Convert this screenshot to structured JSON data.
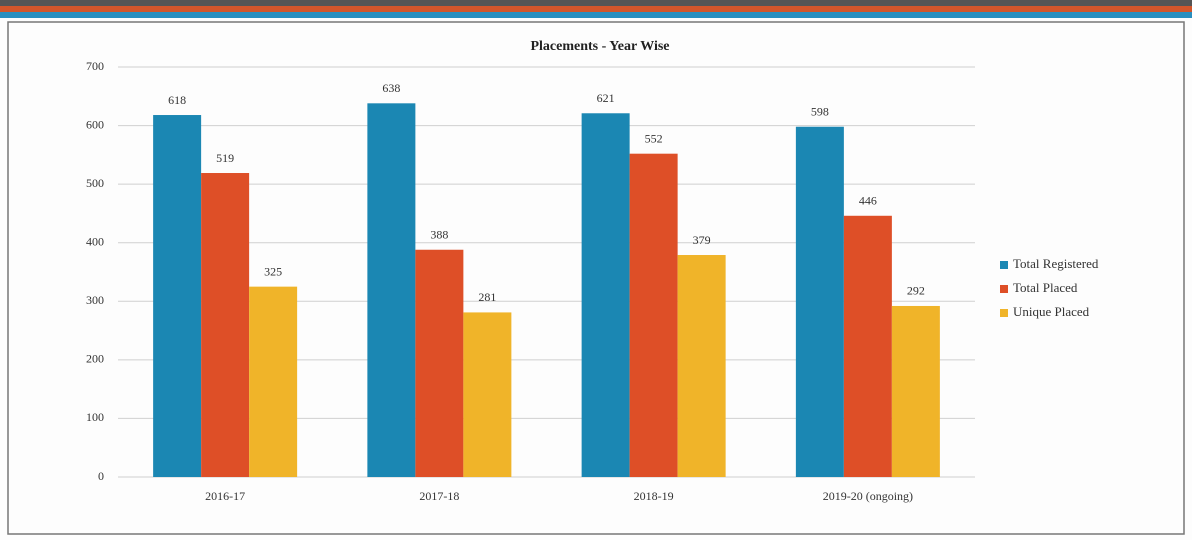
{
  "chart_data": {
    "type": "bar",
    "title": "Placements - Year Wise",
    "categories": [
      "2016-17",
      "2017-18",
      "2018-19",
      "2019-20 (ongoing)"
    ],
    "series": [
      {
        "name": "Total Registered",
        "color": "#1b87b3",
        "values": [
          618,
          638,
          621,
          598
        ]
      },
      {
        "name": "Total Placed",
        "color": "#de4f27",
        "values": [
          519,
          388,
          552,
          446
        ]
      },
      {
        "name": "Unique Placed",
        "color": "#f0b429",
        "values": [
          325,
          281,
          379,
          292
        ]
      }
    ],
    "ylim": [
      0,
      700
    ],
    "yticks": [
      0,
      100,
      200,
      300,
      400,
      500,
      600,
      700
    ],
    "grid": true,
    "legend": "right"
  }
}
